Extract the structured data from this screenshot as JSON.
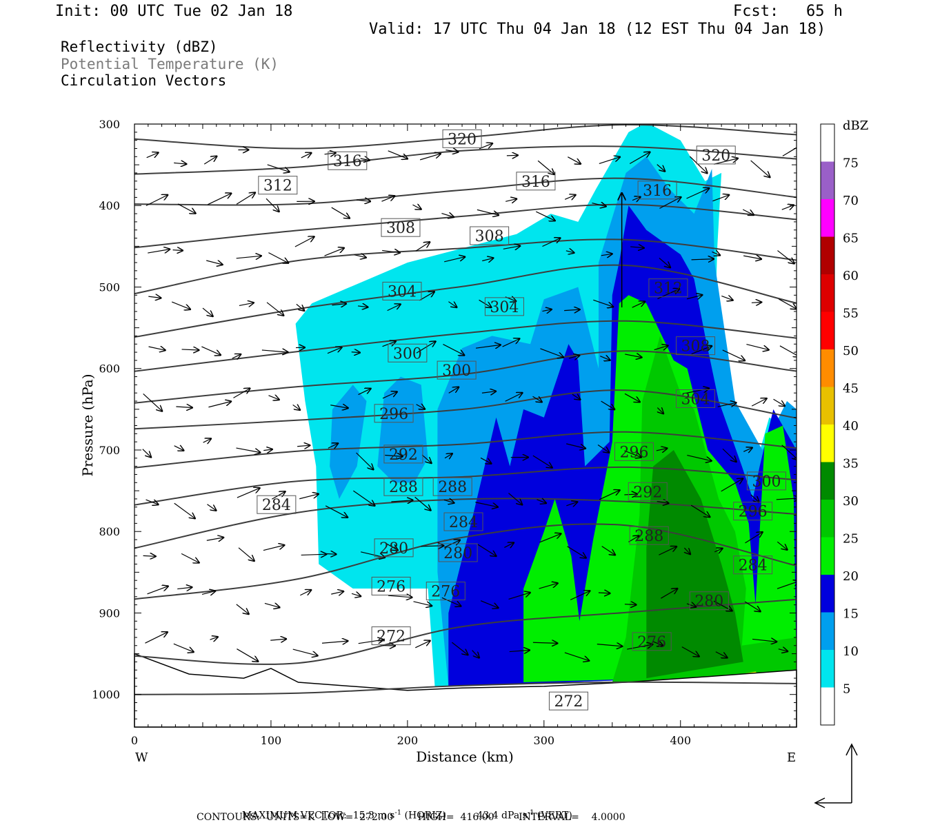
{
  "header": {
    "init": "Init: 00 UTC Tue 02 Jan 18",
    "fcst": "Fcst:   65 h",
    "valid": "Valid: 17 UTC Thu 04 Jan 18 (12 EST Thu 04 Jan 18)"
  },
  "legend_lines": {
    "reflectivity": "Reflectivity (dBZ)",
    "theta": "Potential Temperature (K)",
    "vectors": "Circulation Vectors"
  },
  "colors": {
    "theta_line": "#3d3d3d",
    "reflectivity_scale": [
      "#00e5ee",
      "#009fee",
      "#0000dd",
      "#00ee00",
      "#00c800",
      "#008a00",
      "#ffff00",
      "#e8c000",
      "#ff8c00",
      "#ff0000",
      "#dd0000",
      "#b00000",
      "#ff00ff",
      "#9a5fc8",
      "#ffffff"
    ]
  },
  "chart_data": {
    "type": "vertical cross-section (filled contours + line contours + vectors)",
    "xlabel": "Distance (km)",
    "ylabel": "Pressure (hPa)",
    "xlim": [
      0,
      485
    ],
    "ylim": [
      1040,
      300
    ],
    "x_ticks": [
      "0",
      "100",
      "200",
      "300",
      "400"
    ],
    "y_ticks": [
      "300",
      "400",
      "500",
      "600",
      "700",
      "800",
      "900",
      "1000"
    ],
    "x_end_labels": {
      "left": "W",
      "right": "E"
    },
    "colorbar": {
      "title": "dBZ",
      "levels": [
        "5",
        "10",
        "15",
        "20",
        "25",
        "30",
        "35",
        "40",
        "45",
        "50",
        "55",
        "60",
        "65",
        "70",
        "75"
      ]
    },
    "reflectivity_regions": [
      {
        "dbz": 5,
        "outline": [
          [
            118,
            545
          ],
          [
            130,
            520
          ],
          [
            200,
            470
          ],
          [
            280,
            435
          ],
          [
            305,
            410
          ],
          [
            325,
            420
          ],
          [
            338,
            380
          ],
          [
            350,
            345
          ],
          [
            362,
            310
          ],
          [
            375,
            298
          ],
          [
            400,
            320
          ],
          [
            418,
            370
          ],
          [
            430,
            360
          ],
          [
            427,
            450
          ],
          [
            425,
            560
          ],
          [
            440,
            680
          ],
          [
            455,
            720
          ],
          [
            465,
            660
          ],
          [
            485,
            680
          ],
          [
            485,
            970
          ],
          [
            220,
            990
          ],
          [
            215,
            870
          ],
          [
            160,
            870
          ],
          [
            135,
            840
          ],
          [
            133,
            720
          ],
          [
            125,
            640
          ]
        ]
      },
      {
        "dbz": 10,
        "outline": [
          [
            145,
            650
          ],
          [
            160,
            620
          ],
          [
            170,
            640
          ],
          [
            163,
            720
          ],
          [
            150,
            760
          ],
          [
            143,
            720
          ]
        ]
      },
      {
        "dbz": 10,
        "outline": [
          [
            178,
            720
          ],
          [
            183,
            630
          ],
          [
            195,
            610
          ],
          [
            210,
            620
          ],
          [
            215,
            710
          ],
          [
            205,
            740
          ],
          [
            190,
            740
          ]
        ]
      },
      {
        "dbz": 10,
        "outline": [
          [
            222,
            650
          ],
          [
            240,
            575
          ],
          [
            262,
            560
          ],
          [
            290,
            570
          ],
          [
            300,
            515
          ],
          [
            325,
            500
          ],
          [
            340,
            600
          ],
          [
            340,
            470
          ],
          [
            360,
            360
          ],
          [
            375,
            340
          ],
          [
            392,
            380
          ],
          [
            410,
            410
          ],
          [
            423,
            355
          ],
          [
            425,
            470
          ],
          [
            440,
            640
          ],
          [
            460,
            700
          ],
          [
            478,
            640
          ],
          [
            485,
            650
          ],
          [
            485,
            975
          ],
          [
            230,
            990
          ],
          [
            222,
            850
          ]
        ]
      },
      {
        "dbz": 15,
        "outline": [
          [
            230,
            990
          ],
          [
            230,
            900
          ],
          [
            248,
            780
          ],
          [
            265,
            660
          ],
          [
            275,
            720
          ],
          [
            285,
            650
          ],
          [
            300,
            660
          ],
          [
            318,
            570
          ],
          [
            325,
            590
          ],
          [
            330,
            720
          ],
          [
            348,
            690
          ],
          [
            350,
            510
          ],
          [
            355,
            470
          ],
          [
            362,
            400
          ],
          [
            375,
            430
          ],
          [
            400,
            460
          ],
          [
            410,
            490
          ],
          [
            418,
            560
          ],
          [
            428,
            640
          ],
          [
            445,
            720
          ],
          [
            453,
            760
          ],
          [
            458,
            720
          ],
          [
            468,
            650
          ],
          [
            485,
            700
          ],
          [
            485,
            975
          ]
        ]
      },
      {
        "dbz": 20,
        "outline": [
          [
            285,
            985
          ],
          [
            285,
            870
          ],
          [
            300,
            800
          ],
          [
            308,
            760
          ],
          [
            320,
            830
          ],
          [
            326,
            910
          ],
          [
            336,
            810
          ],
          [
            350,
            690
          ],
          [
            355,
            520
          ],
          [
            362,
            510
          ],
          [
            375,
            520
          ],
          [
            395,
            590
          ],
          [
            405,
            600
          ],
          [
            420,
            700
          ],
          [
            440,
            740
          ],
          [
            450,
            790
          ],
          [
            455,
            890
          ],
          [
            462,
            680
          ],
          [
            475,
            670
          ],
          [
            483,
            760
          ],
          [
            485,
            975
          ]
        ]
      },
      {
        "dbz": 25,
        "outline": [
          [
            350,
            985
          ],
          [
            360,
            930
          ],
          [
            370,
            780
          ],
          [
            372,
            640
          ],
          [
            385,
            560
          ],
          [
            400,
            630
          ],
          [
            410,
            650
          ],
          [
            428,
            760
          ],
          [
            440,
            800
          ],
          [
            448,
            870
          ],
          [
            445,
            940
          ],
          [
            485,
            930
          ],
          [
            485,
            975
          ]
        ]
      },
      {
        "dbz": 30,
        "outline": [
          [
            375,
            980
          ],
          [
            375,
            820
          ],
          [
            380,
            720
          ],
          [
            395,
            700
          ],
          [
            415,
            760
          ],
          [
            430,
            840
          ],
          [
            440,
            900
          ],
          [
            446,
            960
          ]
        ]
      },
      {
        "dbz": 35,
        "outline": [
          [
            420,
            980
          ],
          [
            440,
            976
          ],
          [
            455,
            972
          ],
          [
            460,
            978
          ],
          [
            440,
            982
          ]
        ]
      }
    ],
    "theta_contours": [
      {
        "theta": "272",
        "y": [
          1000,
          995,
          990,
          988,
          985
        ]
      },
      {
        "theta": "276",
        "y": [
          950,
          960,
          920,
          900,
          880
        ]
      },
      {
        "theta": "280",
        "y": [
          880,
          860,
          810,
          790,
          840
        ]
      },
      {
        "theta": "284",
        "y": [
          820,
          780,
          760,
          760,
          780
        ]
      },
      {
        "theta": "288",
        "y": [
          770,
          740,
          730,
          720,
          740
        ]
      },
      {
        "theta": "292",
        "y": [
          725,
          700,
          690,
          680,
          700
        ]
      },
      {
        "theta": "296",
        "y": [
          675,
          660,
          650,
          630,
          660
        ]
      },
      {
        "theta": "300",
        "y": [
          640,
          620,
          610,
          580,
          600
        ]
      },
      {
        "theta": "304",
        "y": [
          600,
          580,
          560,
          540,
          560
        ]
      },
      {
        "theta": "308",
        "y": [
          560,
          530,
          500,
          470,
          520
        ]
      },
      {
        "theta": "312",
        "y": [
          510,
          470,
          450,
          440,
          470
        ]
      },
      {
        "theta": "316",
        "y": [
          455,
          430,
          410,
          400,
          420
        ]
      },
      {
        "theta": "320",
        "y": [
          400,
          395,
          380,
          370,
          390
        ]
      },
      {
        "theta": "324",
        "y": [
          360,
          350,
          335,
          330,
          340
        ]
      },
      {
        "theta": "328",
        "y": [
          315,
          330,
          320,
          300,
          310
        ]
      }
    ],
    "theta_x": [
      0,
      120,
      240,
      360,
      485
    ],
    "contour_label_positions": [
      {
        "text": "320",
        "x": 240,
        "p": 318
      },
      {
        "text": "316",
        "x": 156,
        "p": 345
      },
      {
        "text": "312",
        "x": 105,
        "p": 375
      },
      {
        "text": "316",
        "x": 294,
        "p": 370
      },
      {
        "text": "316",
        "x": 383,
        "p": 381
      },
      {
        "text": "320",
        "x": 426,
        "p": 338
      },
      {
        "text": "308",
        "x": 195,
        "p": 427
      },
      {
        "text": "308",
        "x": 260,
        "p": 437
      },
      {
        "text": "304",
        "x": 196,
        "p": 505
      },
      {
        "text": "304",
        "x": 271,
        "p": 524
      },
      {
        "text": "312",
        "x": 391,
        "p": 501
      },
      {
        "text": "300",
        "x": 200,
        "p": 581
      },
      {
        "text": "300",
        "x": 236,
        "p": 602
      },
      {
        "text": "308",
        "x": 411,
        "p": 572
      },
      {
        "text": "304",
        "x": 411,
        "p": 637
      },
      {
        "text": "296",
        "x": 190,
        "p": 655
      },
      {
        "text": "292",
        "x": 197,
        "p": 705
      },
      {
        "text": "296",
        "x": 366,
        "p": 702
      },
      {
        "text": "288",
        "x": 197,
        "p": 745
      },
      {
        "text": "288",
        "x": 233,
        "p": 745
      },
      {
        "text": "292",
        "x": 376,
        "p": 751
      },
      {
        "text": "300",
        "x": 463,
        "p": 738
      },
      {
        "text": "284",
        "x": 104,
        "p": 767
      },
      {
        "text": "284",
        "x": 241,
        "p": 788
      },
      {
        "text": "296",
        "x": 453,
        "p": 775
      },
      {
        "text": "288",
        "x": 377,
        "p": 805
      },
      {
        "text": "280",
        "x": 190,
        "p": 820
      },
      {
        "text": "280",
        "x": 237,
        "p": 826
      },
      {
        "text": "284",
        "x": 453,
        "p": 841
      },
      {
        "text": "276",
        "x": 188,
        "p": 867
      },
      {
        "text": "276",
        "x": 228,
        "p": 873
      },
      {
        "text": "280",
        "x": 421,
        "p": 885
      },
      {
        "text": "272",
        "x": 188,
        "p": 928
      },
      {
        "text": "276",
        "x": 379,
        "p": 935
      },
      {
        "text": "272",
        "x": 318,
        "p": 1008
      }
    ],
    "vectors_note": "circulation vectors (u, omega)",
    "max_vector": {
      "horiz": "15.3",
      "vert": "43.4"
    }
  },
  "footer": {
    "max_vector_line": [
      "MAXIMUM VECTOR:  15.3 m s",
      "-1",
      " (HORIZ)          43.4 dPa s",
      "-1",
      " (VERT)"
    ],
    "contours_line": "CONTOURS:  UNITS=K  LOW=  272.00        HIGH=  416.00        INTERVAL=    4.0000"
  }
}
